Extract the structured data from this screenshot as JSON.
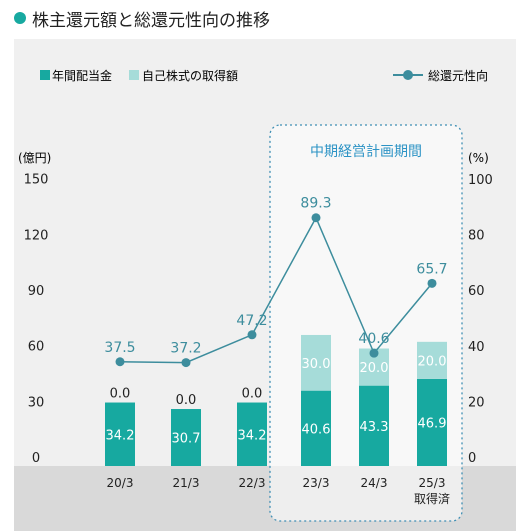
{
  "title": "株主還元額と総還元性向の推移",
  "legend": {
    "dividend": "年間配当金",
    "buyback": "自己株式の取得額",
    "ratio": "総還元性向"
  },
  "plan_label": "中期経営計画期間",
  "colors": {
    "accent": "#17a9a0",
    "buyback": "#a6dcd9",
    "line": "#3d8d9d",
    "plan_border": "#3f8fb4",
    "plan_text": "#2c93c5",
    "bottom_band": "#d9d9d9",
    "panel": "#f0f0f0"
  },
  "chart_data": {
    "type": "bar",
    "categories": [
      "20/3",
      "21/3",
      "22/3",
      "23/3",
      "24/3",
      "25/3"
    ],
    "category_notes": [
      "",
      "",
      "",
      "",
      "",
      "取得済"
    ],
    "series": [
      {
        "name": "年間配当金",
        "values": [
          34.2,
          30.7,
          34.2,
          40.6,
          43.3,
          46.9
        ]
      },
      {
        "name": "自己株式の取得額",
        "values": [
          0.0,
          0.0,
          0.0,
          30.0,
          20.0,
          20.0
        ]
      },
      {
        "name": "総還元性向",
        "type": "line",
        "axis": "right",
        "values": [
          37.5,
          37.2,
          47.2,
          89.3,
          40.6,
          65.7
        ]
      }
    ],
    "y_left": {
      "unit": "(億円)",
      "ticks": [
        0,
        30,
        60,
        90,
        120,
        150
      ],
      "range": [
        0,
        150
      ]
    },
    "y_right": {
      "unit": "(%)",
      "ticks": [
        0,
        20,
        40,
        60,
        80,
        100
      ],
      "range": [
        0,
        100
      ]
    },
    "highlight_categories": [
      "23/3",
      "24/3",
      "25/3"
    ],
    "grid": false,
    "legend_position": "top"
  }
}
